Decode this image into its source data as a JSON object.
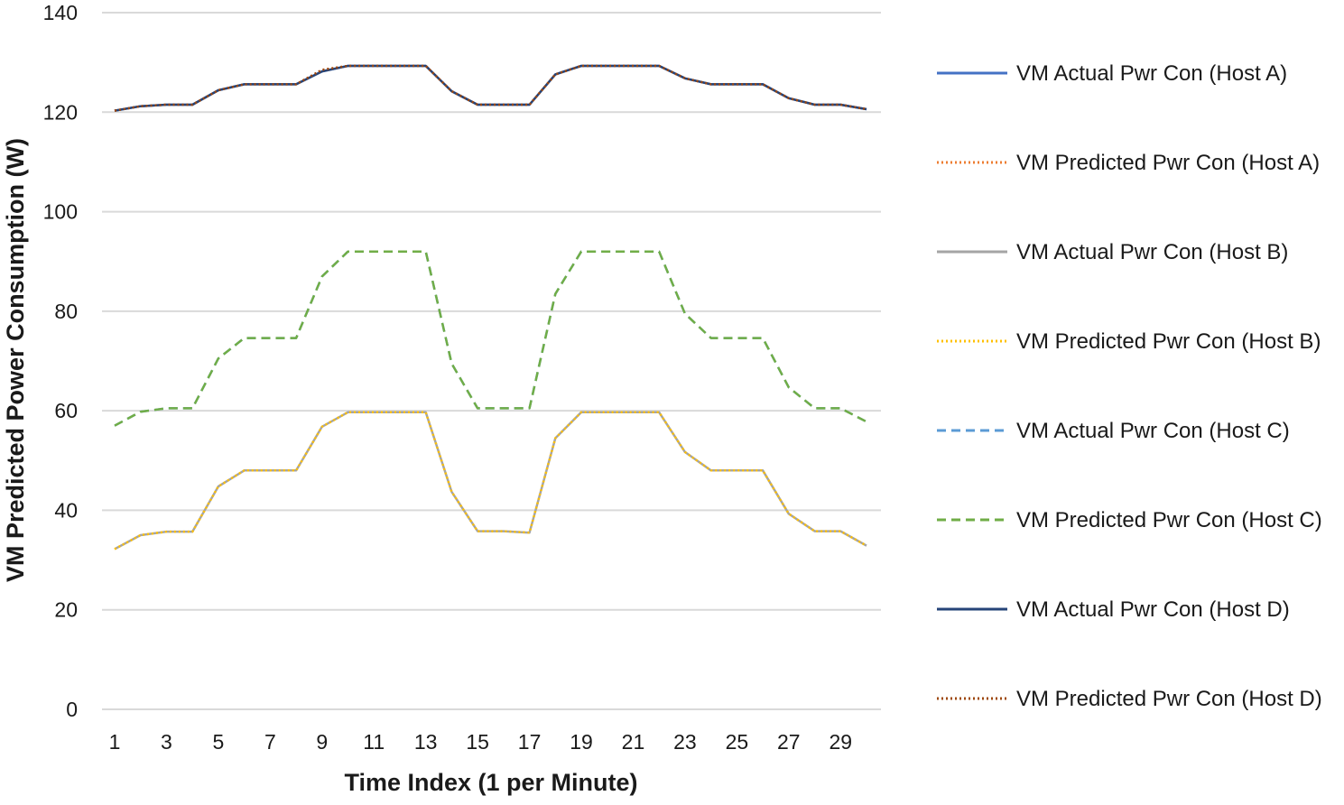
{
  "chart_data": {
    "type": "line",
    "title": "",
    "xlabel": "Time Index (1 per Minute)",
    "ylabel": "VM Predicted Power Consumption (W)",
    "ylim": [
      0,
      140
    ],
    "yticks": [
      0,
      20,
      40,
      60,
      80,
      100,
      120,
      140
    ],
    "xticks": [
      1,
      3,
      5,
      7,
      9,
      11,
      13,
      15,
      17,
      19,
      21,
      23,
      25,
      27,
      29
    ],
    "x": [
      1,
      2,
      3,
      4,
      5,
      6,
      7,
      8,
      9,
      10,
      11,
      12,
      13,
      14,
      15,
      16,
      17,
      18,
      19,
      20,
      21,
      22,
      23,
      24,
      25,
      26,
      27,
      28,
      29,
      30
    ],
    "grid": true,
    "legend_position": "right",
    "series": [
      {
        "name": "VM Actual Pwr Con (Host A)",
        "color": "#4472C4",
        "dash": "solid",
        "values": [
          120.3,
          121.2,
          121.5,
          121.5,
          124.4,
          125.6,
          125.6,
          125.6,
          128.2,
          129.3,
          129.3,
          129.3,
          129.3,
          124.2,
          121.5,
          121.5,
          121.5,
          127.6,
          129.3,
          129.3,
          129.3,
          129.3,
          126.8,
          125.6,
          125.6,
          125.6,
          122.8,
          121.5,
          121.5,
          120.6
        ]
      },
      {
        "name": "VM Predicted Pwr Con (Host A)",
        "color": "#ED7D31",
        "dash": "dotted",
        "values": [
          120.3,
          121.2,
          121.5,
          121.5,
          124.4,
          125.6,
          125.6,
          125.6,
          128.5,
          129.3,
          129.3,
          129.3,
          129.3,
          124.2,
          121.5,
          121.5,
          121.5,
          127.6,
          129.3,
          129.3,
          129.3,
          129.3,
          126.8,
          125.6,
          125.6,
          125.6,
          122.8,
          121.5,
          121.5,
          120.6
        ]
      },
      {
        "name": "VM Actual Pwr Con (Host B)",
        "color": "#A5A5A5",
        "dash": "solid",
        "values": [
          32.2,
          35.0,
          35.7,
          35.7,
          44.8,
          48.0,
          48.0,
          48.0,
          56.8,
          59.7,
          59.7,
          59.7,
          59.7,
          43.7,
          35.8,
          35.8,
          35.5,
          54.5,
          59.7,
          59.7,
          59.7,
          59.7,
          51.7,
          48.0,
          48.0,
          48.0,
          39.3,
          35.8,
          35.8,
          32.9
        ]
      },
      {
        "name": "VM Predicted Pwr Con (Host B)",
        "color": "#FFC000",
        "dash": "dotted",
        "values": [
          32.2,
          35.0,
          35.7,
          35.7,
          44.8,
          48.0,
          48.0,
          48.0,
          56.8,
          59.7,
          59.7,
          59.7,
          59.7,
          43.7,
          35.8,
          35.8,
          35.5,
          54.5,
          59.7,
          59.7,
          59.7,
          59.7,
          51.7,
          48.0,
          48.0,
          48.0,
          39.3,
          35.8,
          35.8,
          32.9
        ]
      },
      {
        "name": "VM Actual Pwr Con (Host C)",
        "color": "#5B9BD5",
        "dash": "dashed",
        "values": [
          57.0,
          59.8,
          60.5,
          60.5,
          70.5,
          74.6,
          74.6,
          74.6,
          87.0,
          92.0,
          92.0,
          92.0,
          92.0,
          69.5,
          60.5,
          60.5,
          60.5,
          83.5,
          92.0,
          92.0,
          92.0,
          92.0,
          79.5,
          74.6,
          74.6,
          74.6,
          64.7,
          60.5,
          60.5,
          57.8
        ]
      },
      {
        "name": "VM Predicted Pwr Con (Host C)",
        "color": "#70AD47",
        "dash": "dashed",
        "values": [
          57.0,
          59.8,
          60.5,
          60.5,
          70.5,
          74.6,
          74.6,
          74.6,
          87.0,
          92.0,
          92.0,
          92.0,
          92.0,
          69.5,
          60.5,
          60.5,
          60.5,
          83.5,
          92.0,
          92.0,
          92.0,
          92.0,
          79.5,
          74.6,
          74.6,
          74.6,
          64.7,
          60.5,
          60.5,
          57.8
        ]
      },
      {
        "name": "VM Actual Pwr Con (Host D)",
        "color": "#264478",
        "dash": "solid",
        "values": [
          120.3,
          121.2,
          121.5,
          121.5,
          124.4,
          125.6,
          125.6,
          125.6,
          128.2,
          129.3,
          129.3,
          129.3,
          129.3,
          124.2,
          121.5,
          121.5,
          121.5,
          127.6,
          129.3,
          129.3,
          129.3,
          129.3,
          126.8,
          125.6,
          125.6,
          125.6,
          122.8,
          121.5,
          121.5,
          120.6
        ]
      },
      {
        "name": "VM Predicted Pwr Con (Host D)",
        "color": "#9E480E",
        "dash": "dotted",
        "values": [
          120.3,
          121.2,
          121.5,
          121.5,
          124.4,
          125.6,
          125.6,
          125.6,
          128.5,
          129.3,
          129.3,
          129.3,
          129.3,
          124.2,
          121.5,
          121.5,
          121.5,
          127.6,
          129.3,
          129.3,
          129.3,
          129.3,
          126.8,
          125.6,
          125.6,
          125.6,
          122.8,
          121.5,
          121.5,
          120.6
        ]
      }
    ]
  }
}
